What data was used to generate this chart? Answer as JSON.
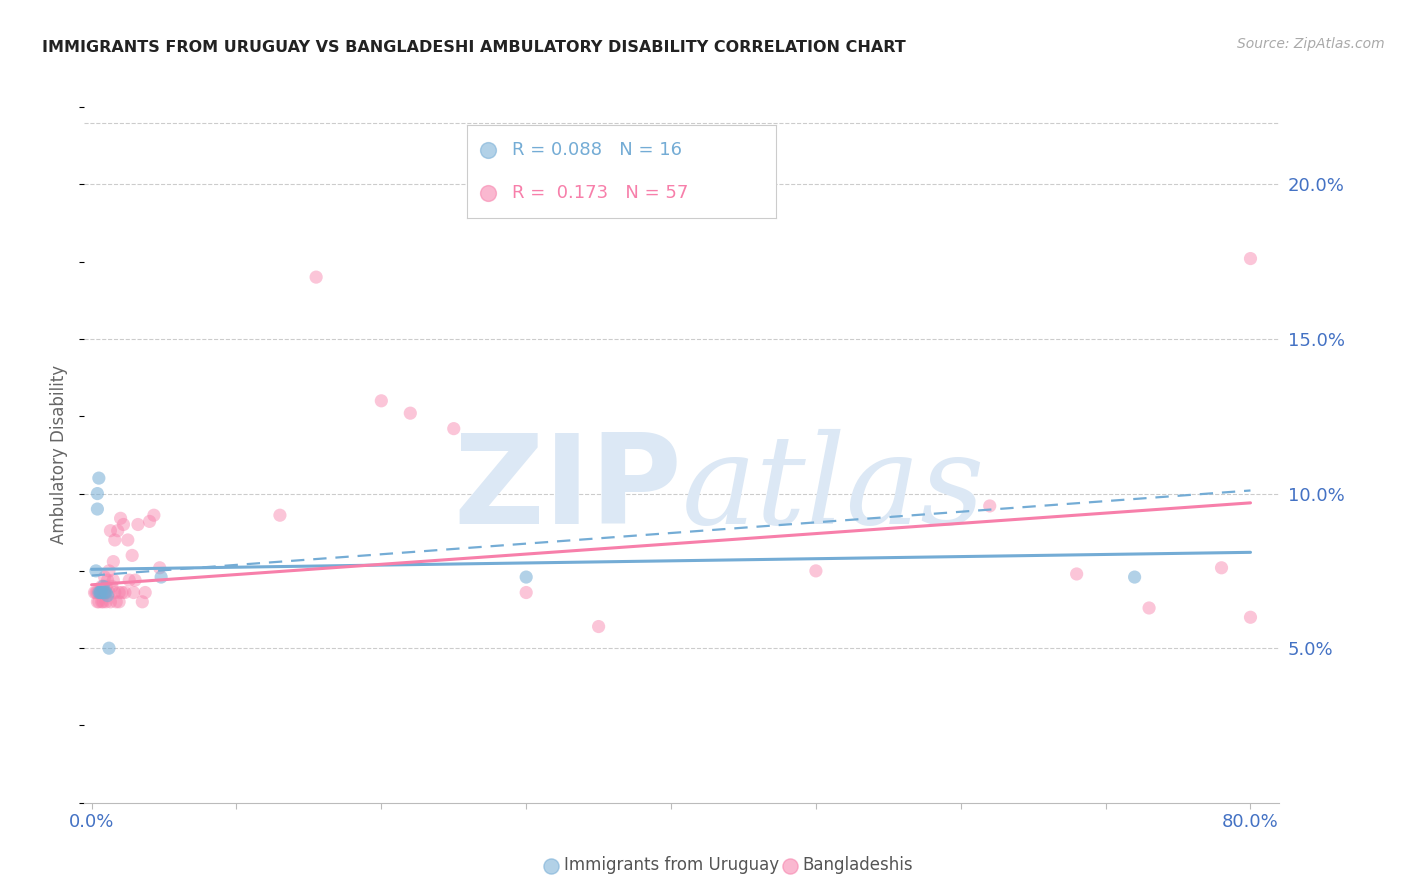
{
  "title": "IMMIGRANTS FROM URUGUAY VS BANGLADESHI AMBULATORY DISABILITY CORRELATION CHART",
  "source": "Source: ZipAtlas.com",
  "ylabel": "Ambulatory Disability",
  "watermark": "ZIPatlas",
  "xlim": [
    -0.005,
    0.82
  ],
  "ylim": [
    0.0,
    0.225
  ],
  "yticks": [
    0.05,
    0.1,
    0.15,
    0.2
  ],
  "xticks": [
    0.0,
    0.1,
    0.2,
    0.3,
    0.4,
    0.5,
    0.6,
    0.7,
    0.8
  ],
  "ytick_labels": [
    "5.0%",
    "10.0%",
    "15.0%",
    "20.0%"
  ],
  "blue_scatter_x": [
    0.003,
    0.004,
    0.004,
    0.005,
    0.005,
    0.006,
    0.006,
    0.007,
    0.008,
    0.009,
    0.01,
    0.011,
    0.012,
    0.048,
    0.3,
    0.72
  ],
  "blue_scatter_y": [
    0.075,
    0.095,
    0.1,
    0.105,
    0.068,
    0.068,
    0.068,
    0.068,
    0.07,
    0.068,
    0.068,
    0.067,
    0.05,
    0.073,
    0.073,
    0.073
  ],
  "pink_scatter_x": [
    0.002,
    0.003,
    0.004,
    0.004,
    0.005,
    0.006,
    0.007,
    0.007,
    0.008,
    0.008,
    0.009,
    0.009,
    0.01,
    0.01,
    0.011,
    0.012,
    0.012,
    0.013,
    0.013,
    0.014,
    0.015,
    0.015,
    0.016,
    0.016,
    0.017,
    0.018,
    0.019,
    0.019,
    0.02,
    0.021,
    0.022,
    0.023,
    0.025,
    0.026,
    0.028,
    0.029,
    0.03,
    0.032,
    0.035,
    0.037,
    0.04,
    0.043,
    0.047,
    0.13,
    0.155,
    0.2,
    0.22,
    0.25,
    0.3,
    0.35,
    0.5,
    0.62,
    0.68,
    0.73,
    0.78,
    0.8,
    0.8
  ],
  "pink_scatter_y": [
    0.068,
    0.068,
    0.065,
    0.068,
    0.065,
    0.068,
    0.065,
    0.07,
    0.065,
    0.068,
    0.068,
    0.073,
    0.065,
    0.07,
    0.072,
    0.068,
    0.075,
    0.065,
    0.088,
    0.07,
    0.072,
    0.078,
    0.068,
    0.085,
    0.065,
    0.088,
    0.065,
    0.068,
    0.092,
    0.068,
    0.09,
    0.068,
    0.085,
    0.072,
    0.08,
    0.068,
    0.072,
    0.09,
    0.065,
    0.068,
    0.091,
    0.093,
    0.076,
    0.093,
    0.17,
    0.13,
    0.126,
    0.121,
    0.068,
    0.057,
    0.075,
    0.096,
    0.074,
    0.063,
    0.076,
    0.06,
    0.176
  ],
  "blue_line": {
    "x0": 0.0,
    "x1": 0.8,
    "y0": 0.0755,
    "y1": 0.081
  },
  "blue_dashed_line": {
    "x0": 0.0,
    "x1": 0.8,
    "y0": 0.0735,
    "y1": 0.101
  },
  "pink_line": {
    "x0": 0.0,
    "x1": 0.8,
    "y0": 0.0705,
    "y1": 0.097
  },
  "blue_color": "#74acd5",
  "pink_color": "#f77faa",
  "bg_color": "#ffffff",
  "grid_color": "#cccccc",
  "right_axis_color": "#4472c4",
  "title_color": "#222222",
  "watermark_color": "#dce8f5",
  "legend_R1": "R = 0.088",
  "legend_N1": "N = 16",
  "legend_R2": "R =  0.173",
  "legend_N2": "N = 57",
  "xlabel_blue": "Immigrants from Uruguay",
  "xlabel_pink": "Bangladeshis"
}
